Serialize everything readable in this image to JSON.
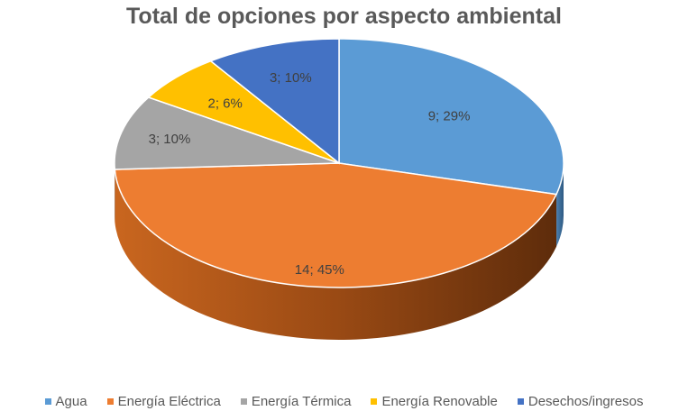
{
  "chart_data": {
    "type": "pie",
    "title": "Total de opciones por aspecto ambiental",
    "categories": [
      "Agua",
      "Energía Eléctrica",
      "Energía Térmica",
      "Energía Renovable",
      "Desechos/ingresos"
    ],
    "values": [
      9,
      14,
      3,
      2,
      3
    ],
    "data_labels": [
      "9; 29%",
      "14; 45%",
      "3; 10%",
      "2; 6%",
      "3; 10%"
    ],
    "colors": [
      "#5B9BD5",
      "#ED7D31",
      "#A5A5A5",
      "#FFC000",
      "#4472C4"
    ],
    "legend_position": "bottom",
    "style": "3d"
  }
}
